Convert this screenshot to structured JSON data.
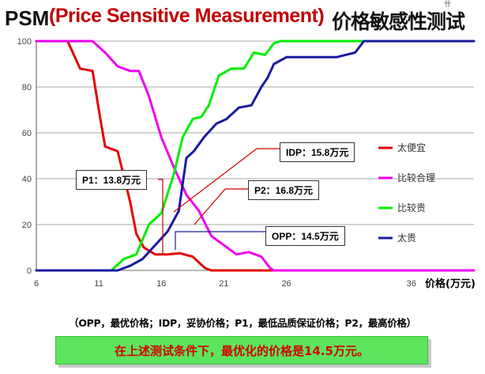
{
  "title": {
    "prefix": "PSM",
    "main": "(Price Sensitive Measurement)",
    "chinese": "价格敏感性测试",
    "mark": "卄"
  },
  "chart_data": {
    "type": "line",
    "title": "",
    "xlabel": "价格(万元)",
    "ylabel": "",
    "xlim": [
      6,
      41
    ],
    "ylim": [
      0,
      100
    ],
    "x_ticks": [
      6,
      11,
      16,
      21,
      26,
      36
    ],
    "y_ticks": [
      0,
      20,
      40,
      60,
      80,
      100
    ],
    "grid": "horizontal",
    "legend_position": "right",
    "series": [
      {
        "name": "太便宜",
        "color": "#e30000",
        "points": [
          [
            6,
            100
          ],
          [
            8.5,
            100
          ],
          [
            9.5,
            88
          ],
          [
            10.5,
            87
          ],
          [
            11,
            70
          ],
          [
            11.5,
            54
          ],
          [
            12.5,
            52
          ],
          [
            13.5,
            30
          ],
          [
            14,
            16
          ],
          [
            14.6,
            10
          ],
          [
            15.5,
            7
          ],
          [
            16.5,
            7
          ],
          [
            17.5,
            7.5
          ],
          [
            18.5,
            6
          ],
          [
            19.5,
            1
          ],
          [
            20,
            0
          ],
          [
            41,
            0
          ]
        ]
      },
      {
        "name": "比较合理",
        "color": "#ee00ee",
        "points": [
          [
            6,
            100
          ],
          [
            10.5,
            100
          ],
          [
            11.5,
            95
          ],
          [
            12.5,
            89
          ],
          [
            13.5,
            87
          ],
          [
            14.2,
            87
          ],
          [
            15,
            76
          ],
          [
            16,
            58
          ],
          [
            17,
            45
          ],
          [
            18,
            33
          ],
          [
            19,
            26
          ],
          [
            20,
            15
          ],
          [
            21,
            11
          ],
          [
            22,
            7
          ],
          [
            23,
            8
          ],
          [
            24,
            6
          ],
          [
            24.7,
            1
          ],
          [
            25,
            0
          ],
          [
            41,
            0
          ]
        ]
      },
      {
        "name": "比较贵",
        "color": "#00ee00",
        "points": [
          [
            6,
            0
          ],
          [
            12,
            0
          ],
          [
            13,
            5
          ],
          [
            14,
            7
          ],
          [
            15,
            20
          ],
          [
            16,
            25
          ],
          [
            17,
            42
          ],
          [
            17.7,
            58
          ],
          [
            18.5,
            66
          ],
          [
            19.2,
            67
          ],
          [
            19.8,
            72
          ],
          [
            20.6,
            85
          ],
          [
            21.6,
            88
          ],
          [
            22.6,
            88
          ],
          [
            23.4,
            95
          ],
          [
            24.3,
            94
          ],
          [
            25,
            99
          ],
          [
            25.5,
            100
          ],
          [
            41,
            100
          ]
        ]
      },
      {
        "name": "太贵",
        "color": "#1a1aa0",
        "points": [
          [
            6,
            0
          ],
          [
            12.5,
            0
          ],
          [
            13.5,
            2
          ],
          [
            14.5,
            5
          ],
          [
            15.5,
            11
          ],
          [
            16.5,
            17
          ],
          [
            17.4,
            26
          ],
          [
            18,
            49
          ],
          [
            18.6,
            52
          ],
          [
            19.4,
            58
          ],
          [
            20.4,
            64
          ],
          [
            21.2,
            66
          ],
          [
            22.2,
            71
          ],
          [
            23.2,
            72
          ],
          [
            24,
            80
          ],
          [
            24.5,
            84
          ],
          [
            25,
            90
          ],
          [
            26,
            93
          ],
          [
            28,
            93
          ],
          [
            30,
            93
          ],
          [
            31.5,
            95
          ],
          [
            32.2,
            100
          ],
          [
            41,
            100
          ]
        ]
      }
    ],
    "annotations": [
      {
        "label": "IDP：15.8万元",
        "x": 15.8
      },
      {
        "label": "P1：13.8万元",
        "x": 13.8
      },
      {
        "label": "P2：16.8万元",
        "x": 16.8
      },
      {
        "label": "OPP：14.5万元",
        "x": 14.5
      }
    ]
  },
  "footnote": "（OPP，最优价格；IDP，妥协价格；P1，最低品质保证价格；P2，最高价格）",
  "conclusion": "在上述测试条件下，最优化的价格是14.5万元。",
  "colors": {
    "conclusion_bg": "#5ce55c",
    "conclusion_text": "#d40000",
    "title_accent": "#c00000"
  }
}
